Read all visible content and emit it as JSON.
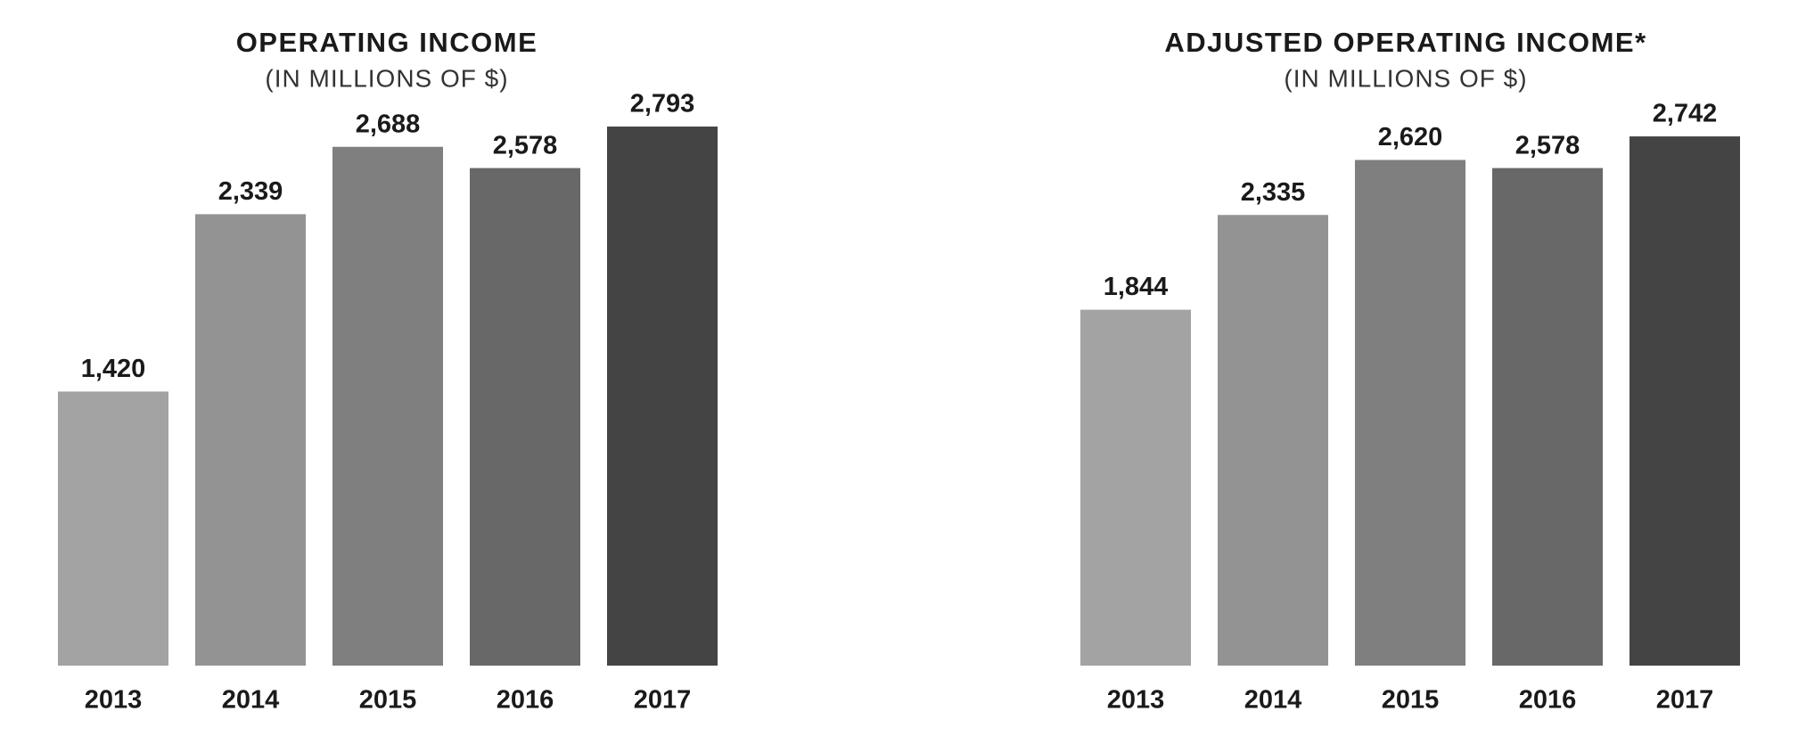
{
  "chart_data": [
    {
      "type": "bar",
      "title": "OPERATING INCOME",
      "subtitle": "(IN MILLIONS OF $)",
      "categories": [
        "2013",
        "2014",
        "2015",
        "2016",
        "2017"
      ],
      "values": [
        1420,
        2339,
        2688,
        2578,
        2793
      ],
      "value_labels": [
        "1,420",
        "2,339",
        "2,688",
        "2,578",
        "2,793"
      ],
      "colors": [
        "#a3a3a3",
        "#939393",
        "#7f7f7f",
        "#686868",
        "#444444"
      ]
    },
    {
      "type": "bar",
      "title": "ADJUSTED OPERATING INCOME*",
      "subtitle": "(IN MILLIONS OF $)",
      "categories": [
        "2013",
        "2014",
        "2015",
        "2016",
        "2017"
      ],
      "values": [
        1844,
        2335,
        2620,
        2578,
        2742
      ],
      "value_labels": [
        "1,844",
        "2,335",
        "2,620",
        "2,578",
        "2,742"
      ],
      "colors": [
        "#a3a3a3",
        "#939393",
        "#7f7f7f",
        "#686868",
        "#444444"
      ]
    }
  ]
}
